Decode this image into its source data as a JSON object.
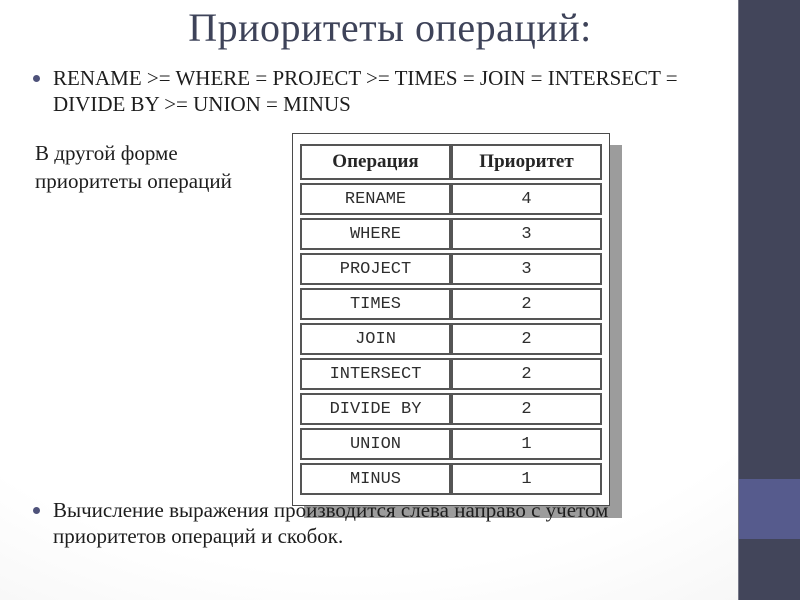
{
  "slide": {
    "title": "Приоритеты операций:",
    "bullet1": "RENAME >= WHERE = PROJECT >= TIMES = JOIN = INTERSECT =\nDIVIDE BY >= UNION = MINUS",
    "note": "В другой форме\nприоритеты операций",
    "bullet2": "Вычисление выражения производится слева направо с учетом\nприоритетов операций и скобок."
  },
  "table": {
    "headers": [
      "Операция",
      "Приоритет"
    ],
    "rows": [
      [
        "RENAME",
        "4"
      ],
      [
        "WHERE",
        "3"
      ],
      [
        "PROJECT",
        "3"
      ],
      [
        "TIMES",
        "2"
      ],
      [
        "JOIN",
        "2"
      ],
      [
        "INTERSECT",
        "2"
      ],
      [
        "DIVIDE BY",
        "2"
      ],
      [
        "UNION",
        "1"
      ],
      [
        "MINUS",
        "1"
      ]
    ]
  },
  "colors": {
    "sidebar": "#42455a",
    "accent_square": "#565b8d",
    "title_text": "#3e4359",
    "body_text": "#1d1d1d",
    "table_border": "#555555",
    "figure_shadow": "#9c9c9c",
    "bullet_dot": "#4e527a"
  }
}
